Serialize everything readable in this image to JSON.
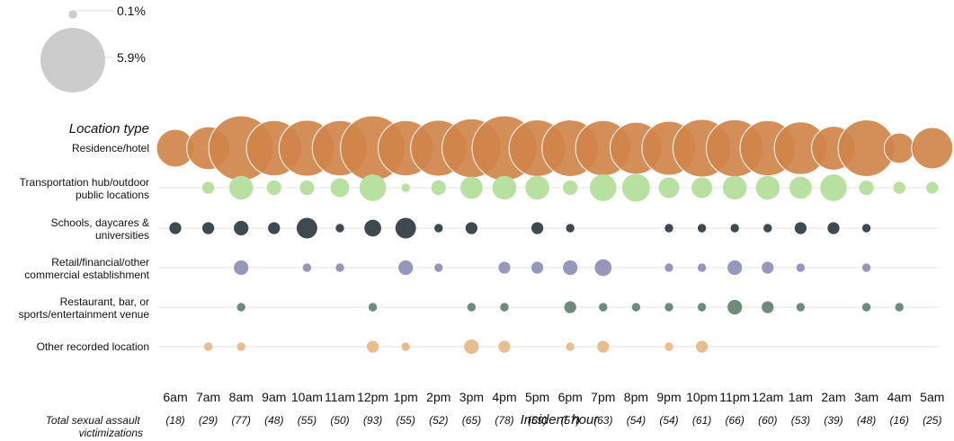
{
  "legend": {
    "entries": [
      {
        "label": "0.1%",
        "value": 0.1
      },
      {
        "label": "5.9%",
        "value": 5.9
      }
    ],
    "color": "#cccccc"
  },
  "chart_data": {
    "type": "scatter",
    "y_title": "Location type",
    "x_title": "Incident hour",
    "count_title": "Total sexual assault victimizations",
    "hours": [
      "6am",
      "7am",
      "8am",
      "9am",
      "10am",
      "11am",
      "12pm",
      "1pm",
      "2pm",
      "3pm",
      "4pm",
      "5pm",
      "6pm",
      "7pm",
      "8pm",
      "9pm",
      "10pm",
      "11pm",
      "12am",
      "1am",
      "2am",
      "3am",
      "4am",
      "5am"
    ],
    "totals": [
      "(18)",
      "(29)",
      "(77)",
      "(48)",
      "(55)",
      "(50)",
      "(93)",
      "(55)",
      "(52)",
      "(65)",
      "(78)",
      "(59)",
      "(57)",
      "(63)",
      "(54)",
      "(54)",
      "(61)",
      "(66)",
      "(60)",
      "(53)",
      "(39)",
      "(48)",
      "(16)",
      "(25)"
    ],
    "size_unit": "percent of victimizations",
    "series": [
      {
        "name": "Residence/hotel",
        "label_lines": [
          "Residence/hotel"
        ],
        "color": "#d0844a",
        "values": [
          2.0,
          2.6,
          5.9,
          4.3,
          4.4,
          4.3,
          5.9,
          4.3,
          4.4,
          4.9,
          5.9,
          4.5,
          4.5,
          4.3,
          3.8,
          4.1,
          4.7,
          4.6,
          4.3,
          3.9,
          2.7,
          4.5,
          1.3,
          2.4
        ]
      },
      {
        "name": "Transportation hub/outdoor public locations",
        "label_lines": [
          "Transportation hub/outdoor",
          "public locations"
        ],
        "color": "#b8e0a0",
        "values": [
          null,
          0.2,
          0.8,
          0.3,
          0.3,
          0.5,
          1.0,
          0.1,
          0.3,
          0.7,
          0.8,
          0.8,
          0.3,
          1.0,
          1.1,
          0.6,
          0.6,
          0.8,
          0.8,
          0.7,
          1.0,
          0.3,
          0.2,
          0.2
        ]
      },
      {
        "name": "Schools, daycares & universities",
        "label_lines": [
          "Schools, daycares &",
          "universities"
        ],
        "color": "#3e4a4f",
        "values": [
          0.2,
          0.2,
          0.3,
          0.2,
          0.6,
          0.1,
          0.4,
          0.6,
          0.1,
          0.2,
          null,
          0.2,
          0.1,
          null,
          null,
          0.1,
          0.1,
          0.1,
          0.1,
          0.2,
          0.2,
          0.1,
          null,
          null
        ]
      },
      {
        "name": "Retail/financial/other commercial establishment",
        "label_lines": [
          "Retail/financial/other",
          "commercial establishment"
        ],
        "color": "#9797bb",
        "values": [
          null,
          null,
          0.3,
          null,
          0.1,
          0.1,
          null,
          0.3,
          0.1,
          null,
          0.2,
          0.2,
          0.3,
          0.4,
          null,
          0.1,
          0.1,
          0.3,
          0.2,
          0.1,
          null,
          0.1,
          null,
          null
        ]
      },
      {
        "name": "Restaurant, bar, or sports/entertainment venue",
        "label_lines": [
          "Restaurant, bar, or",
          "sports/entertainment venue"
        ],
        "color": "#6d8c7c",
        "values": [
          null,
          null,
          0.1,
          null,
          null,
          null,
          0.1,
          null,
          null,
          0.1,
          0.1,
          null,
          0.2,
          0.1,
          0.1,
          0.1,
          0.1,
          0.3,
          0.2,
          0.1,
          null,
          0.1,
          0.1,
          null
        ]
      },
      {
        "name": "Other recorded location",
        "label_lines": [
          "Other recorded location"
        ],
        "color": "#e8be8e",
        "values": [
          null,
          0.1,
          0.1,
          null,
          null,
          null,
          0.2,
          0.1,
          null,
          0.3,
          0.2,
          null,
          0.1,
          0.2,
          null,
          0.1,
          0.2,
          null,
          null,
          null,
          null,
          null,
          null,
          null
        ]
      }
    ]
  }
}
